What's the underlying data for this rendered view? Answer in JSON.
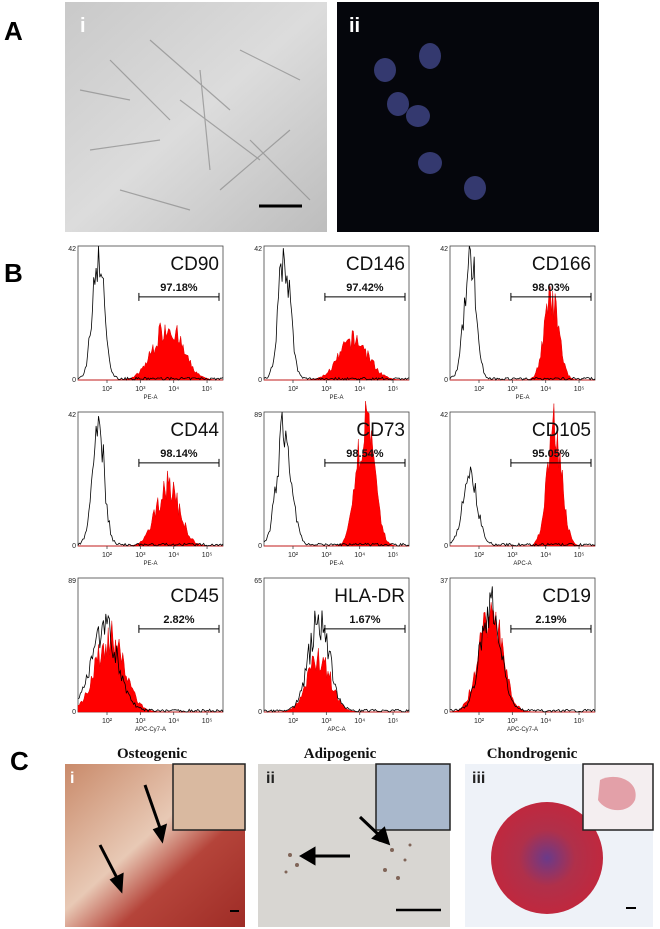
{
  "panels": {
    "A": {
      "label": "A",
      "images": [
        {
          "label": "i"
        },
        {
          "label": "ii"
        }
      ]
    },
    "B": {
      "label": "B",
      "histograms": [
        {
          "marker": "CD90",
          "percent": "97.18%",
          "y_max": "42",
          "y_min": "0",
          "x_label": "PE-A",
          "x_ticks": [
            "10²",
            "10³",
            "10⁴",
            "10⁵"
          ]
        },
        {
          "marker": "CD146",
          "percent": "97.42%",
          "y_max": "42",
          "y_min": "0",
          "x_label": "PE-A",
          "x_ticks": [
            "10²",
            "10³",
            "10⁴",
            "10⁵"
          ]
        },
        {
          "marker": "CD166",
          "percent": "98.03%",
          "y_max": "42",
          "y_min": "0",
          "x_label": "PE-A",
          "x_ticks": [
            "10²",
            "10³",
            "10⁴",
            "10⁵"
          ]
        },
        {
          "marker": "CD44",
          "percent": "98.14%",
          "y_max": "42",
          "y_min": "0",
          "x_label": "PE-A",
          "x_ticks": [
            "10²",
            "10³",
            "10⁴",
            "10⁵"
          ]
        },
        {
          "marker": "CD73",
          "percent": "98.54%",
          "y_max": "89",
          "y_min": "0",
          "x_label": "PE-A",
          "x_ticks": [
            "10²",
            "10³",
            "10⁴",
            "10⁵"
          ]
        },
        {
          "marker": "CD105",
          "percent": "95.05%",
          "y_max": "42",
          "y_min": "0",
          "x_label": "APC-A",
          "x_ticks": [
            "10²",
            "10³",
            "10⁴",
            "10⁵"
          ]
        },
        {
          "marker": "CD45",
          "percent": "2.82%",
          "y_max": "89",
          "y_min": "0",
          "x_label": "APC-Cy7-A",
          "x_ticks": [
            "10²",
            "10³",
            "10⁴",
            "10⁵"
          ]
        },
        {
          "marker": "HLA-DR",
          "percent": "1.67%",
          "y_max": "65",
          "y_min": "0",
          "x_label": "APC-A",
          "x_ticks": [
            "10²",
            "10³",
            "10⁴",
            "10⁵"
          ]
        },
        {
          "marker": "CD19",
          "percent": "2.19%",
          "y_max": "37",
          "y_min": "0",
          "x_label": "APC-Cy7-A",
          "x_ticks": [
            "10²",
            "10³",
            "10⁴",
            "10⁵"
          ]
        }
      ]
    },
    "C": {
      "label": "C",
      "images": [
        {
          "label": "i",
          "title": "Osteogenic"
        },
        {
          "label": "ii",
          "title": "Adipogenic"
        },
        {
          "label": "iii",
          "title": "Chondrogenic"
        }
      ]
    }
  }
}
